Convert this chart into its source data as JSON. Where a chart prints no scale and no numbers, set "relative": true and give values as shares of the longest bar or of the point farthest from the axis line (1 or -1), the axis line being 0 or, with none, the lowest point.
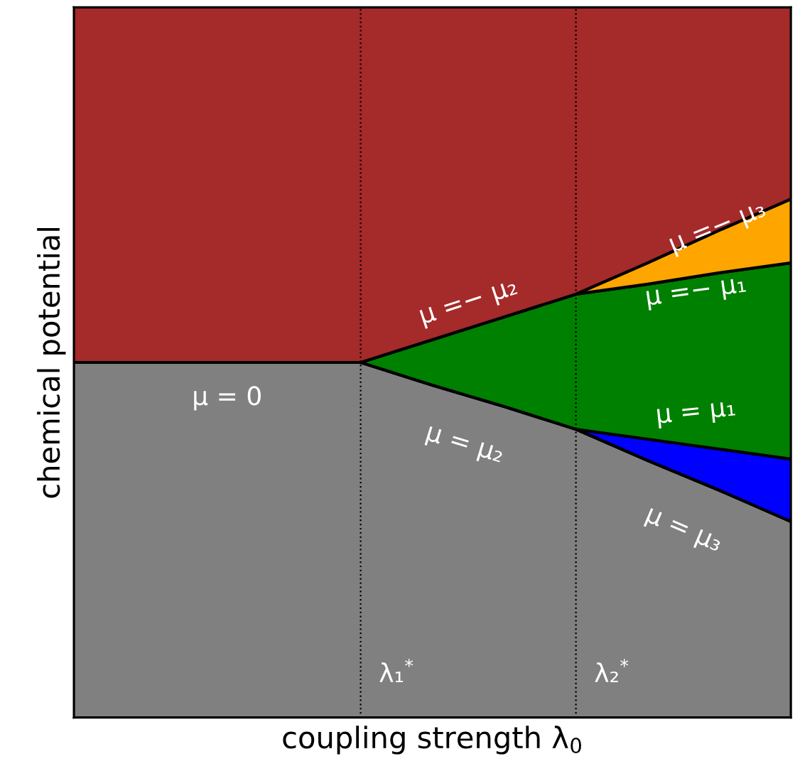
{
  "chart_data": {
    "type": "area",
    "relative": true,
    "stacked": true,
    "xlabel": "coupling strength λ$_{0}$",
    "ylabel": "chemical potential",
    "legend": false,
    "categories": [
      null,
      null,
      null,
      null,
      null,
      null,
      null,
      null,
      null,
      null,
      null
    ],
    "series": [
      {
        "color": "#808080",
        "values": [
          0.5,
          0.5,
          0.5,
          0.5,
          0.5,
          0.468,
          0.438,
          0.406,
          0.362,
          0.32,
          0.276
        ]
      },
      {
        "color": "#0000ff",
        "values": [
          0,
          0,
          0,
          0,
          0,
          0,
          0,
          0,
          0.03,
          0.058,
          0.088
        ]
      },
      {
        "color": "#008000",
        "values": [
          0,
          0,
          0,
          0,
          0,
          0.064,
          0.126,
          0.19,
          0.218,
          0.248,
          0.276
        ]
      },
      {
        "color": "#ffa500",
        "values": [
          0,
          0,
          0,
          0,
          0,
          0,
          0,
          0,
          0.03,
          0.06,
          0.09
        ]
      },
      {
        "color": "#a52a2a",
        "values": [
          0.5,
          0.5,
          0.5,
          0.5,
          0.5,
          0.468,
          0.436,
          0.404,
          0.36,
          0.314,
          0.27
        ]
      }
    ],
    "annotations": [
      "μ = 0",
      "μ =− μ₂",
      "μ = μ₂",
      "μ =− μ₃",
      "μ =− μ₁",
      "μ = μ₁",
      "μ = μ₃",
      "λ₁$^{*}$",
      "λ₂$^{*}$"
    ]
  }
}
